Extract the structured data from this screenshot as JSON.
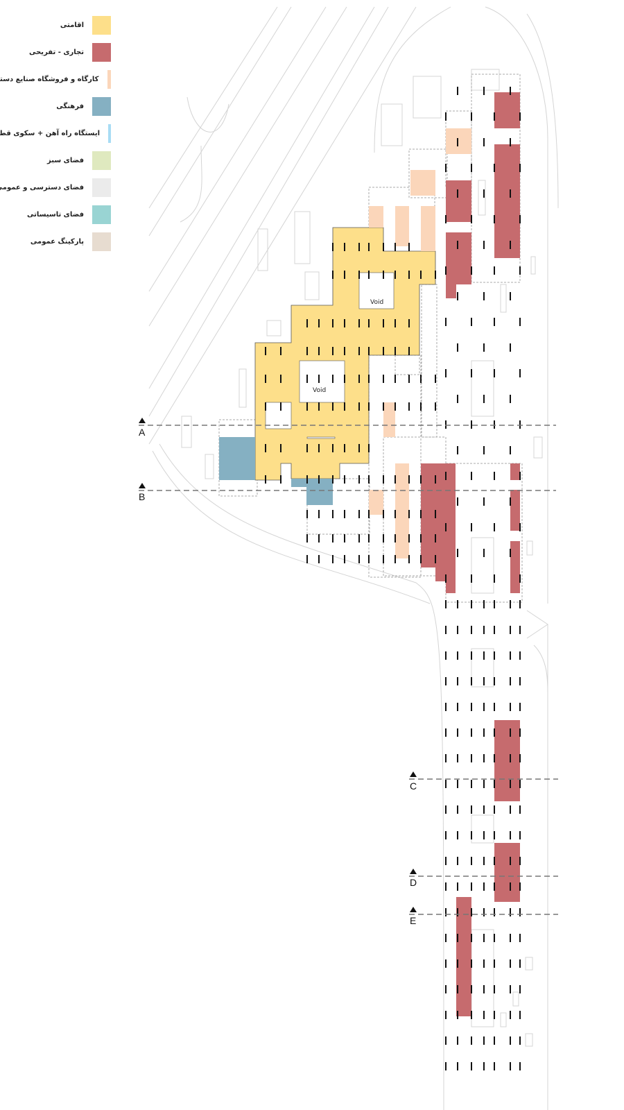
{
  "legend": {
    "items": [
      {
        "label": "اقامتی",
        "color": "#fddf8a"
      },
      {
        "label": "تجاری - تفریحی",
        "color": "#c66b6e"
      },
      {
        "label": "کارگاه و فروشگاه صنایع دستی",
        "color": "#fbd6ba"
      },
      {
        "label": "فرهنگی",
        "color": "#85b0c2"
      },
      {
        "label": "ایستگاه راه آهن + سکوی قطار",
        "color": "#a8dcf4"
      },
      {
        "label": "فضای سبز",
        "color": "#dfe9bf"
      },
      {
        "label": "فضای دسترسی و عمومی",
        "color": "#ebebeb"
      },
      {
        "label": "فضای تاسیساتی",
        "color": "#99d4d3"
      },
      {
        "label": "پارکینگ عمومی",
        "color": "#e7dcd0"
      }
    ]
  },
  "plan": {
    "voids": [
      "Void",
      "Void"
    ],
    "sections": [
      "A",
      "B",
      "C",
      "D",
      "E"
    ]
  }
}
